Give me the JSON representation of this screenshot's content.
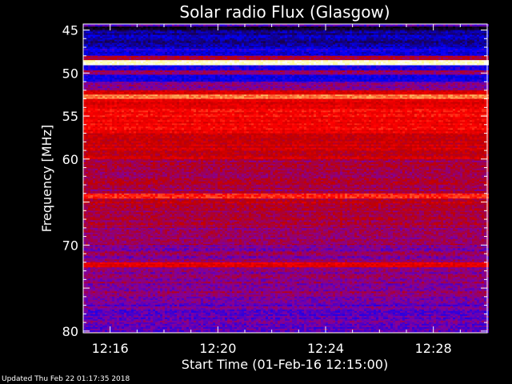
{
  "chart_data": {
    "type": "heatmap",
    "title": "Solar radio Flux (Glasgow)",
    "xlabel": "Start Time (01-Feb-16 12:15:00)",
    "ylabel": "Frequency [MHz]",
    "x_ticks": [
      "12:16",
      "12:20",
      "12:24",
      "12:28"
    ],
    "x_tick_minutes": [
      16,
      20,
      24,
      28
    ],
    "xlim_minutes": [
      15,
      30
    ],
    "y_ticks": [
      45,
      50,
      55,
      60,
      65,
      70,
      75,
      80
    ],
    "y_tick_labels": [
      "45",
      "50",
      "55",
      "60",
      "",
      "70",
      "",
      "80"
    ],
    "ylim": [
      44.3,
      80.2
    ],
    "y_inverted": true,
    "colormap": [
      "#000000",
      "#1a0050",
      "#0000ff",
      "#8000a0",
      "#c00000",
      "#ff0000",
      "#ff8040",
      "#ffff80",
      "#ffffff"
    ],
    "bands": [
      {
        "f0": 44.3,
        "f1": 44.6,
        "level": 0.3
      },
      {
        "f0": 44.6,
        "f1": 45.0,
        "level": 0.05
      },
      {
        "f0": 45.0,
        "f1": 47.0,
        "level": 0.18
      },
      {
        "f0": 47.0,
        "f1": 48.0,
        "level": 0.25
      },
      {
        "f0": 48.0,
        "f1": 48.5,
        "level": 0.45
      },
      {
        "f0": 48.5,
        "f1": 49.1,
        "level": 0.95
      },
      {
        "f0": 49.1,
        "f1": 49.7,
        "level": 0.3
      },
      {
        "f0": 49.7,
        "f1": 50.2,
        "level": 0.42
      },
      {
        "f0": 50.2,
        "f1": 51.0,
        "level": 0.25
      },
      {
        "f0": 51.0,
        "f1": 52.0,
        "level": 0.38
      },
      {
        "f0": 52.0,
        "f1": 52.5,
        "level": 0.55
      },
      {
        "f0": 52.5,
        "f1": 53.0,
        "level": 0.75
      },
      {
        "f0": 53.0,
        "f1": 54.0,
        "level": 0.58
      },
      {
        "f0": 54.0,
        "f1": 57.0,
        "level": 0.6
      },
      {
        "f0": 57.0,
        "f1": 60.0,
        "level": 0.52
      },
      {
        "f0": 60.0,
        "f1": 64.0,
        "level": 0.45
      },
      {
        "f0": 64.0,
        "f1": 64.6,
        "level": 0.66
      },
      {
        "f0": 64.6,
        "f1": 66.0,
        "level": 0.5
      },
      {
        "f0": 66.0,
        "f1": 68.0,
        "level": 0.45
      },
      {
        "f0": 68.0,
        "f1": 70.0,
        "level": 0.42
      },
      {
        "f0": 70.0,
        "f1": 72.0,
        "level": 0.4
      },
      {
        "f0": 72.0,
        "f1": 72.6,
        "level": 0.55
      },
      {
        "f0": 72.6,
        "f1": 76.0,
        "level": 0.4
      },
      {
        "f0": 76.0,
        "f1": 80.2,
        "level": 0.36
      }
    ]
  },
  "footer": {
    "updated_text": "Updated Thu Feb 22 01:17:35 2018"
  }
}
